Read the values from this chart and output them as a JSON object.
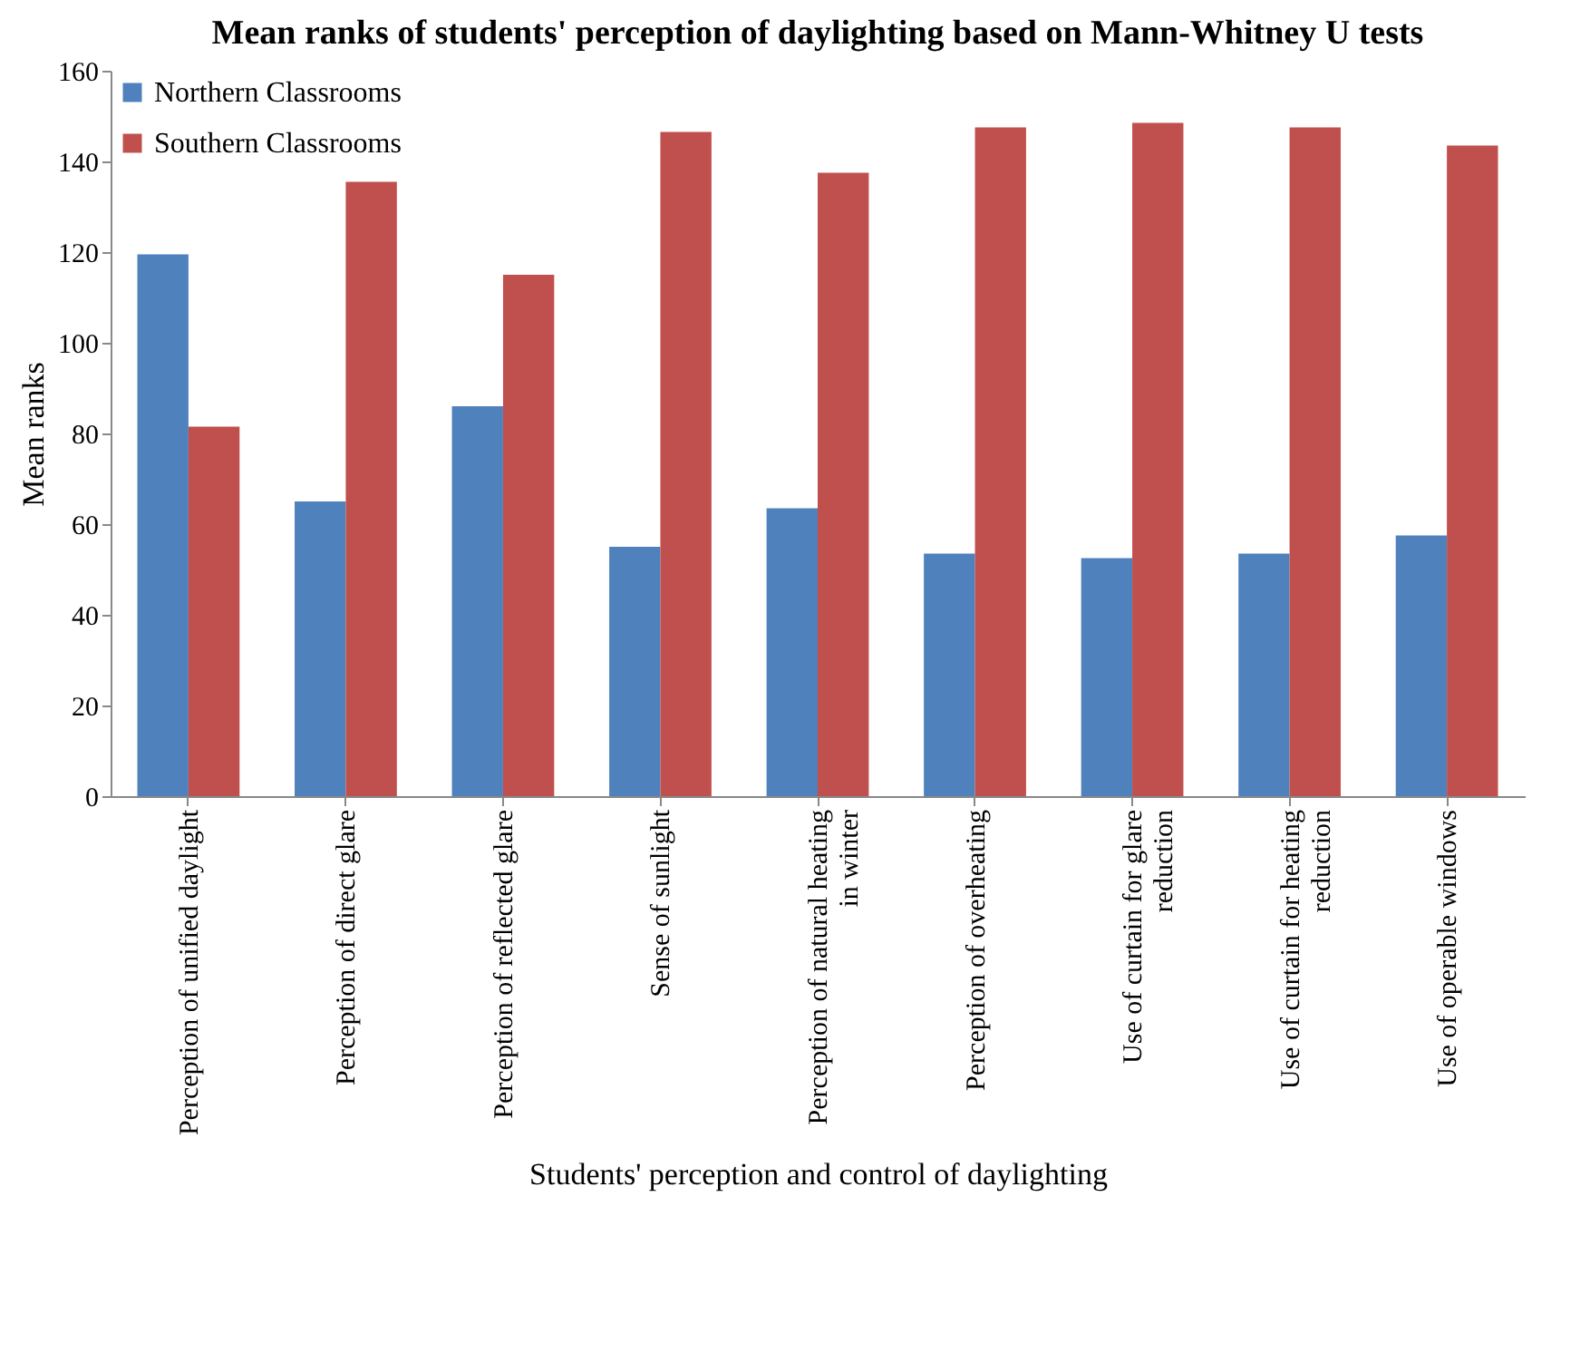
{
  "chart_data": {
    "type": "bar",
    "title": "Mean ranks of students' perception of daylighting based on Mann-Whitney U tests",
    "xlabel": "Students' perception and control of daylighting",
    "ylabel": "Mean ranks",
    "categories": [
      "Perception of unified daylight",
      "Perception of direct glare",
      "Perception of reflected glare",
      "Sense of sunlight",
      "Perception of natural heating in winter",
      "Perception of overheating",
      "Use of curtain for glare reduction",
      "Use of curtain for heating reduction",
      "Use of operable windows"
    ],
    "series": [
      {
        "name": "Northern Classrooms",
        "color": "#4f81bd",
        "values": [
          119.5,
          65,
          86,
          55,
          63.5,
          53.5,
          52.5,
          53.5,
          57.5
        ]
      },
      {
        "name": "Southern Classrooms",
        "color": "#c0504d",
        "values": [
          81.5,
          135.5,
          115,
          146.5,
          137.5,
          147.5,
          148.5,
          147.5,
          143.5
        ]
      }
    ],
    "ylim": [
      0,
      160
    ],
    "yticks": [
      0,
      20,
      40,
      60,
      80,
      100,
      120,
      140,
      160
    ],
    "grid": false,
    "legend": "top left"
  }
}
